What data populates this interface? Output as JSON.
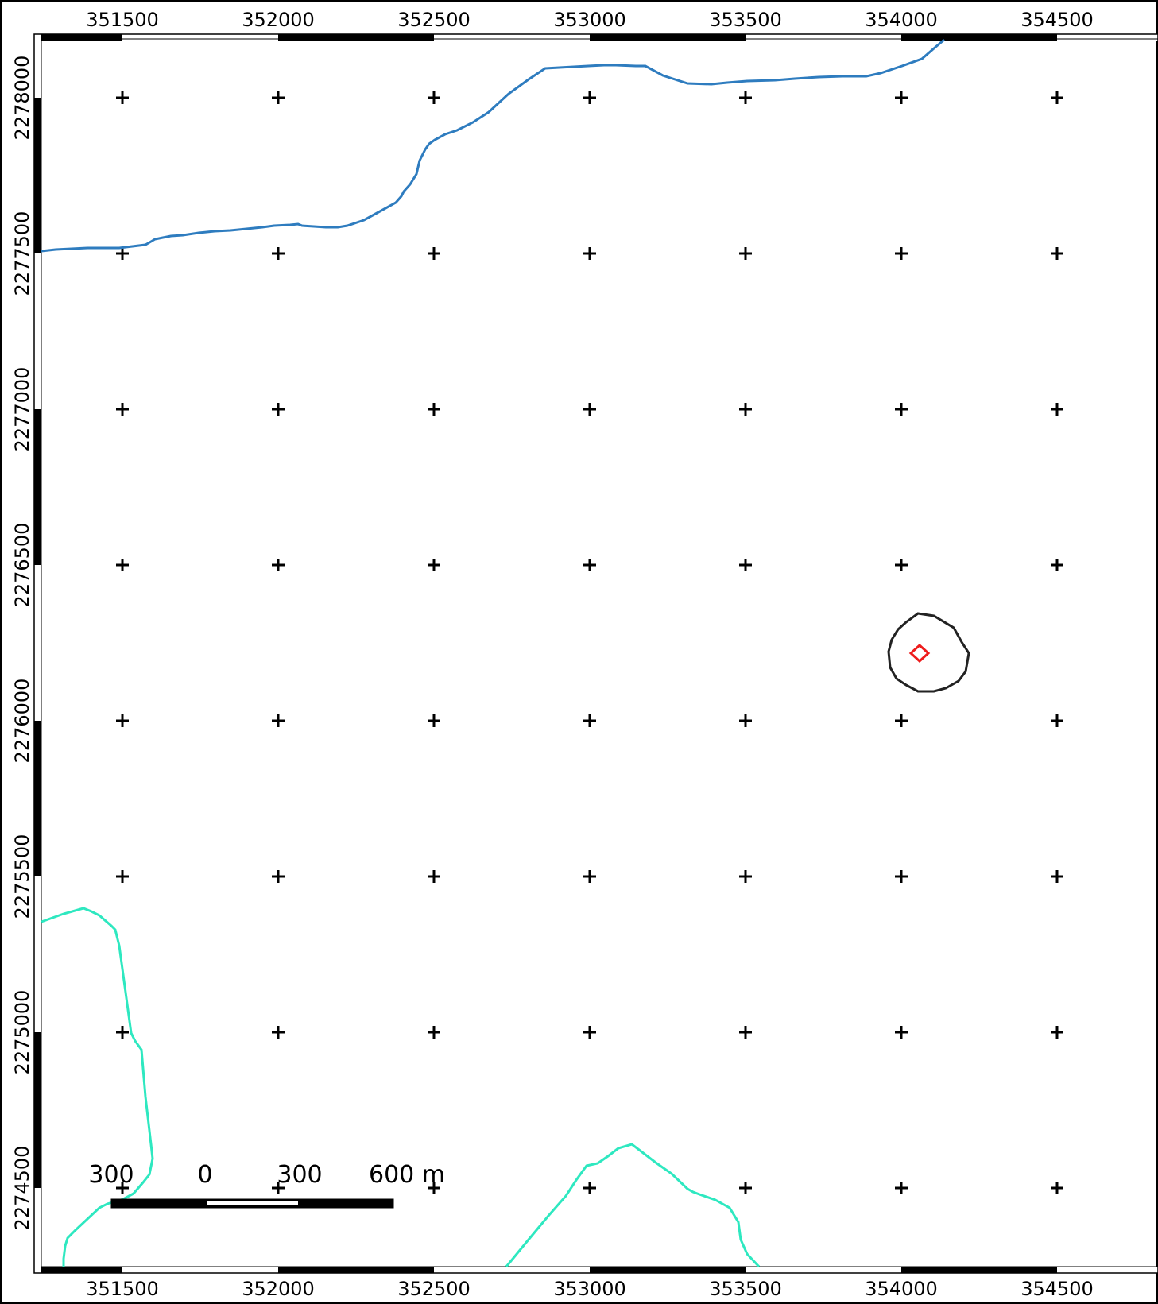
{
  "map": {
    "x_ticks": [
      "351500",
      "352000",
      "352500",
      "353000",
      "353500",
      "354000",
      "354500"
    ],
    "y_ticks": [
      "2278000",
      "2277500",
      "2277000",
      "2276500",
      "2276000",
      "2275500",
      "2275000",
      "2274500"
    ],
    "grid_marker": "+",
    "colors": {
      "river": "#2e7cbf",
      "contour": "#2ee8c0",
      "circle": "#222222",
      "point": "#ee1c1c",
      "frame": "#000000"
    },
    "scale_bar": {
      "labels": [
        "300",
        "0",
        "300",
        "600 m"
      ]
    }
  },
  "icons": {
    "grid": "plus-icon",
    "point": "diamond-icon"
  }
}
